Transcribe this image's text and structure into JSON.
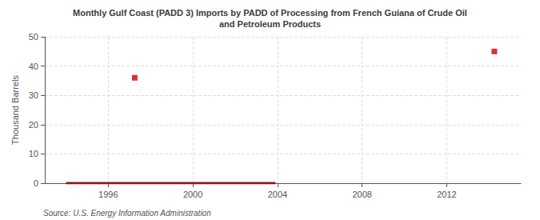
{
  "chart_data": {
    "type": "line",
    "title": "Monthly Gulf Coast (PADD 3) Imports by PADD of Processing from French Guiana of Crude Oil\nand Petroleum Products",
    "ylabel": "Thousand Barrels",
    "source": "Source: U.S. Energy Information Administration",
    "xlim": [
      1993.0,
      2015.5
    ],
    "xticks": [
      1996,
      2000,
      2004,
      2008,
      2012
    ],
    "ylim": [
      0,
      50
    ],
    "yticks": [
      0,
      10,
      20,
      30,
      40,
      50
    ],
    "grid": true,
    "series": [
      {
        "type": "line",
        "color": "#8B1A1A",
        "line_style": "solid",
        "x": [
          1994.0,
          2003.9
        ],
        "values": [
          0,
          0
        ]
      },
      {
        "type": "scatter",
        "color": "#CC0000",
        "marker": "square",
        "x": [
          1997.25,
          2014.25
        ],
        "values": [
          36,
          45
        ]
      }
    ]
  }
}
